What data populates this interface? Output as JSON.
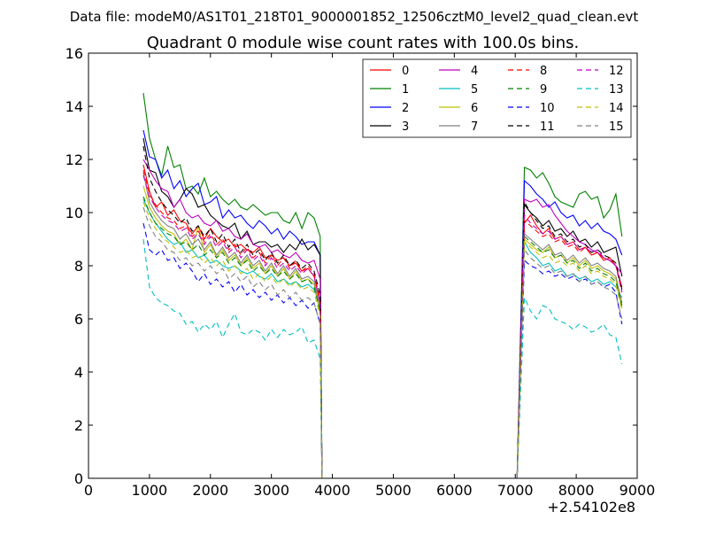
{
  "figure": {
    "suptitle": "Data file: modeM0/AS1T01_218T01_9000001852_12506cztM0_level2_quad_clean.evt"
  },
  "chart_data": {
    "type": "line",
    "title": "Quadrant 0 module wise count rates with 100.0s bins.",
    "xlabel": "",
    "ylabel": "",
    "x_offset_label": "+2.54102e8",
    "xlim": [
      0,
      9000
    ],
    "ylim": [
      0,
      16
    ],
    "xticks": [
      0,
      1000,
      2000,
      3000,
      4000,
      5000,
      6000,
      7000,
      8000,
      9000
    ],
    "yticks": [
      0,
      2,
      4,
      6,
      8,
      10,
      12,
      14,
      16
    ],
    "grid": false,
    "legend": {
      "placement": "top-right",
      "columns": 4
    },
    "gap": {
      "x_end_seg1": 3800,
      "x_drop": 3830,
      "x_rise": 7030,
      "x_start_seg2": 7150
    },
    "seg1_x": [
      900,
      1000,
      1100,
      1200,
      1300,
      1400,
      1500,
      1600,
      1700,
      1800,
      1900,
      2000,
      2100,
      2200,
      2300,
      2400,
      2500,
      2600,
      2700,
      2800,
      2900,
      3000,
      3100,
      3200,
      3300,
      3400,
      3500,
      3600,
      3700,
      3800
    ],
    "seg2_x": [
      7150,
      7250,
      7350,
      7450,
      7550,
      7650,
      7750,
      7850,
      7950,
      8050,
      8150,
      8250,
      8350,
      8450,
      8550,
      8650,
      8750
    ],
    "series": [
      {
        "name": "0",
        "color": "#ff0000",
        "dash": "solid",
        "seg1": [
          11.8,
          10.8,
          10.2,
          10.4,
          9.9,
          10.1,
          9.7,
          9.6,
          9.2,
          9.5,
          9.0,
          9.4,
          9.1,
          8.9,
          9.0,
          8.7,
          8.8,
          8.6,
          8.5,
          8.7,
          8.3,
          8.4,
          8.2,
          8.3,
          8.0,
          8.1,
          7.8,
          7.9,
          7.6,
          6.6
        ],
        "seg2": [
          9.6,
          9.9,
          9.5,
          9.2,
          9.4,
          9.0,
          9.1,
          8.8,
          8.9,
          8.6,
          8.7,
          8.4,
          8.5,
          8.2,
          8.3,
          8.0,
          7.2
        ]
      },
      {
        "name": "1",
        "color": "#008000",
        "dash": "solid",
        "seg1": [
          14.5,
          12.8,
          12.0,
          11.4,
          12.5,
          11.7,
          11.8,
          10.9,
          11.0,
          10.7,
          11.3,
          10.6,
          10.8,
          10.5,
          10.3,
          10.5,
          10.2,
          10.1,
          10.3,
          10.1,
          9.9,
          10.0,
          10.0,
          9.7,
          9.6,
          10.0,
          9.4,
          10.0,
          9.8,
          9.1
        ],
        "seg2": [
          11.7,
          11.6,
          11.3,
          11.5,
          11.1,
          10.6,
          10.4,
          10.3,
          10.2,
          10.7,
          10.8,
          10.5,
          10.6,
          9.8,
          10.1,
          10.7,
          9.1
        ]
      },
      {
        "name": "2",
        "color": "#0000ff",
        "dash": "solid",
        "seg1": [
          13.1,
          12.1,
          12.0,
          11.3,
          11.6,
          10.9,
          11.2,
          10.6,
          10.9,
          11.1,
          10.3,
          10.4,
          10.6,
          9.8,
          10.1,
          9.8,
          9.9,
          9.6,
          9.4,
          9.7,
          9.5,
          9.2,
          9.4,
          9.0,
          9.3,
          9.1,
          8.8,
          8.9,
          8.9,
          8.4
        ],
        "seg2": [
          11.2,
          11.0,
          10.7,
          10.5,
          10.2,
          10.4,
          10.0,
          9.8,
          9.9,
          9.5,
          9.7,
          9.4,
          9.6,
          9.3,
          9.2,
          9.0,
          8.4
        ]
      },
      {
        "name": "3",
        "color": "#000000",
        "dash": "solid",
        "seg1": [
          12.8,
          11.6,
          11.5,
          10.8,
          10.6,
          10.2,
          10.5,
          10.9,
          10.7,
          10.2,
          10.3,
          9.9,
          9.7,
          9.5,
          9.4,
          9.6,
          9.0,
          9.3,
          8.8,
          8.9,
          8.9,
          8.7,
          8.8,
          8.5,
          8.8,
          8.6,
          9.0,
          8.6,
          8.8,
          8.4
        ],
        "seg2": [
          10.3,
          10.0,
          9.8,
          9.5,
          9.7,
          9.3,
          9.4,
          9.1,
          9.3,
          8.9,
          9.0,
          8.7,
          8.9,
          8.5,
          8.6,
          8.7,
          7.6
        ]
      },
      {
        "name": "4",
        "color": "#bf00bf",
        "dash": "solid",
        "seg1": [
          12.0,
          11.6,
          11.2,
          10.9,
          10.8,
          10.2,
          10.5,
          10.0,
          9.8,
          9.9,
          9.6,
          9.5,
          9.7,
          9.3,
          9.4,
          9.1,
          9.0,
          9.2,
          8.8,
          8.7,
          8.8,
          8.5,
          8.6,
          8.4,
          8.3,
          8.5,
          8.2,
          8.1,
          8.2,
          7.5
        ],
        "seg2": [
          10.5,
          10.4,
          10.5,
          10.2,
          10.3,
          9.9,
          9.6,
          9.3,
          9.1,
          8.9,
          8.8,
          8.6,
          8.5,
          8.3,
          8.2,
          8.0,
          7.7
        ]
      },
      {
        "name": "5",
        "color": "#00bfbf",
        "dash": "solid",
        "seg1": [
          10.5,
          10.0,
          9.6,
          9.3,
          9.0,
          8.8,
          8.9,
          8.5,
          8.6,
          8.3,
          8.4,
          8.1,
          8.2,
          8.0,
          7.9,
          8.0,
          7.8,
          7.7,
          7.8,
          7.6,
          7.5,
          7.7,
          7.4,
          7.5,
          7.3,
          7.4,
          7.2,
          7.3,
          7.1,
          6.5
        ],
        "seg2": [
          8.9,
          8.5,
          8.3,
          8.0,
          8.1,
          7.8,
          7.9,
          7.6,
          7.7,
          7.5,
          7.6,
          7.4,
          7.5,
          7.3,
          7.4,
          7.2,
          6.8
        ]
      },
      {
        "name": "6",
        "color": "#bfbf00",
        "dash": "solid",
        "seg1": [
          11.0,
          10.2,
          9.8,
          9.5,
          9.3,
          9.2,
          8.8,
          9.0,
          8.6,
          9.5,
          8.5,
          8.8,
          8.3,
          8.6,
          8.2,
          8.4,
          8.0,
          8.3,
          7.9,
          8.1,
          7.7,
          8.0,
          7.6,
          7.9,
          7.5,
          7.8,
          7.4,
          7.5,
          7.3,
          6.2
        ],
        "seg2": [
          9.0,
          8.8,
          8.6,
          8.5,
          8.7,
          8.3,
          8.4,
          8.1,
          8.3,
          8.0,
          8.2,
          7.9,
          8.0,
          7.8,
          7.7,
          7.5,
          6.4
        ]
      },
      {
        "name": "7",
        "color": "#808080",
        "dash": "solid",
        "seg1": [
          11.5,
          10.4,
          10.0,
          9.7,
          9.5,
          9.4,
          9.0,
          9.2,
          8.8,
          9.0,
          8.6,
          8.9,
          8.4,
          8.7,
          8.3,
          8.5,
          8.1,
          8.4,
          8.0,
          8.2,
          7.8,
          8.1,
          7.7,
          8.0,
          7.6,
          7.9,
          7.5,
          7.6,
          7.4,
          6.4
        ],
        "seg2": [
          9.2,
          9.0,
          8.8,
          8.6,
          8.8,
          8.4,
          8.5,
          8.2,
          8.4,
          8.1,
          8.3,
          8.0,
          8.1,
          7.9,
          7.8,
          7.6,
          6.6
        ]
      },
      {
        "name": "8",
        "color": "#ff0000",
        "dash": "dashed",
        "seg1": [
          11.6,
          10.7,
          10.3,
          10.0,
          9.8,
          9.7,
          9.4,
          9.5,
          9.1,
          9.3,
          8.9,
          9.2,
          8.8,
          9.0,
          8.6,
          8.8,
          8.4,
          8.7,
          8.3,
          8.5,
          8.1,
          8.4,
          8.0,
          8.3,
          7.9,
          8.2,
          7.8,
          8.0,
          7.7,
          6.7
        ],
        "seg2": [
          9.7,
          9.5,
          9.3,
          9.1,
          9.2,
          8.9,
          9.0,
          8.7,
          8.8,
          8.5,
          8.7,
          8.4,
          8.5,
          8.3,
          8.2,
          8.0,
          7.0
        ]
      },
      {
        "name": "9",
        "color": "#008000",
        "dash": "dashed",
        "seg1": [
          10.6,
          10.0,
          9.6,
          9.4,
          9.2,
          9.1,
          8.8,
          8.9,
          8.6,
          8.8,
          8.4,
          8.6,
          8.3,
          8.5,
          8.1,
          8.3,
          8.0,
          8.2,
          7.8,
          8.0,
          7.7,
          7.9,
          7.6,
          7.8,
          7.5,
          7.7,
          7.4,
          7.5,
          7.2,
          6.3
        ],
        "seg2": [
          9.1,
          8.9,
          8.7,
          8.5,
          8.6,
          8.3,
          8.4,
          8.1,
          8.2,
          7.9,
          8.1,
          7.8,
          7.9,
          7.7,
          7.6,
          7.4,
          6.5
        ]
      },
      {
        "name": "10",
        "color": "#0000ff",
        "dash": "dashed",
        "seg1": [
          9.6,
          8.6,
          8.4,
          8.6,
          8.2,
          8.3,
          7.9,
          8.1,
          7.8,
          7.4,
          7.7,
          7.3,
          7.5,
          7.2,
          7.4,
          7.0,
          7.3,
          6.9,
          7.1,
          6.8,
          7.0,
          6.7,
          6.9,
          6.6,
          6.8,
          6.5,
          6.7,
          6.4,
          6.6,
          5.8
        ],
        "seg2": [
          8.2,
          8.0,
          7.9,
          7.7,
          7.8,
          7.6,
          7.7,
          7.5,
          7.6,
          7.4,
          7.5,
          7.3,
          7.4,
          7.2,
          7.3,
          7.0,
          5.8
        ]
      },
      {
        "name": "11",
        "color": "#000000",
        "dash": "dashed",
        "seg1": [
          12.5,
          11.3,
          10.8,
          10.4,
          10.1,
          9.9,
          9.6,
          9.8,
          9.3,
          9.5,
          9.1,
          9.4,
          8.9,
          9.2,
          8.7,
          9.0,
          8.5,
          8.8,
          8.4,
          8.6,
          8.2,
          8.5,
          8.1,
          8.4,
          8.0,
          8.2,
          7.9,
          8.1,
          7.8,
          6.9
        ],
        "seg2": [
          10.4,
          10.0,
          9.7,
          9.4,
          9.5,
          9.1,
          9.2,
          8.9,
          9.0,
          8.7,
          8.8,
          8.5,
          8.6,
          8.4,
          8.3,
          8.1,
          7.1
        ]
      },
      {
        "name": "12",
        "color": "#bf00bf",
        "dash": "dashed",
        "seg1": [
          11.4,
          10.6,
          10.2,
          9.9,
          9.7,
          9.6,
          9.3,
          9.4,
          9.0,
          9.2,
          8.8,
          9.1,
          8.7,
          8.9,
          8.5,
          8.7,
          8.3,
          8.6,
          8.2,
          8.4,
          8.0,
          8.3,
          7.9,
          8.1,
          7.8,
          8.0,
          7.7,
          7.9,
          7.6,
          6.6
        ],
        "seg2": [
          9.9,
          9.6,
          9.4,
          9.2,
          9.3,
          9.0,
          9.1,
          8.8,
          8.9,
          8.6,
          8.7,
          8.5,
          8.6,
          8.3,
          8.2,
          8.0,
          7.0
        ]
      },
      {
        "name": "13",
        "color": "#00bfbf",
        "dash": "dashed",
        "seg1": [
          9.0,
          7.2,
          6.8,
          6.6,
          6.5,
          6.3,
          6.2,
          5.8,
          5.9,
          5.5,
          5.8,
          5.6,
          5.9,
          5.3,
          5.8,
          6.2,
          5.5,
          5.4,
          5.6,
          5.5,
          5.2,
          5.6,
          5.3,
          5.6,
          5.4,
          5.5,
          5.7,
          5.1,
          5.2,
          4.5
        ],
        "seg2": [
          6.8,
          6.3,
          6.0,
          6.5,
          6.4,
          6.0,
          5.9,
          5.8,
          5.6,
          5.8,
          5.7,
          5.5,
          5.6,
          5.8,
          5.4,
          5.3,
          4.3
        ]
      },
      {
        "name": "14",
        "color": "#bfbf00",
        "dash": "dashed",
        "seg1": [
          10.4,
          9.8,
          9.4,
          9.1,
          8.9,
          8.7,
          8.5,
          8.6,
          8.3,
          8.4,
          8.1,
          8.3,
          8.0,
          8.2,
          7.8,
          8.0,
          7.7,
          7.9,
          7.5,
          7.7,
          7.4,
          7.6,
          7.3,
          7.5,
          7.2,
          7.4,
          7.1,
          7.2,
          7.0,
          6.1
        ],
        "seg2": [
          8.9,
          8.7,
          8.5,
          8.3,
          8.4,
          8.1,
          8.2,
          8.0,
          8.1,
          7.8,
          8.0,
          7.7,
          7.8,
          7.6,
          7.5,
          7.3,
          6.3
        ]
      },
      {
        "name": "15",
        "color": "#808080",
        "dash": "dashed",
        "seg1": [
          10.2,
          9.5,
          9.1,
          8.9,
          8.6,
          8.5,
          8.2,
          8.3,
          8.0,
          8.1,
          7.8,
          8.0,
          7.7,
          7.9,
          7.5,
          7.7,
          7.4,
          7.6,
          7.2,
          7.4,
          7.1,
          7.3,
          6.9,
          7.1,
          6.8,
          7.0,
          6.7,
          6.8,
          6.6,
          5.8
        ],
        "seg2": [
          8.6,
          8.3,
          8.1,
          7.9,
          8.0,
          7.7,
          7.8,
          7.6,
          7.7,
          7.4,
          7.6,
          7.3,
          7.4,
          7.2,
          7.1,
          6.9,
          6.0
        ]
      }
    ]
  }
}
